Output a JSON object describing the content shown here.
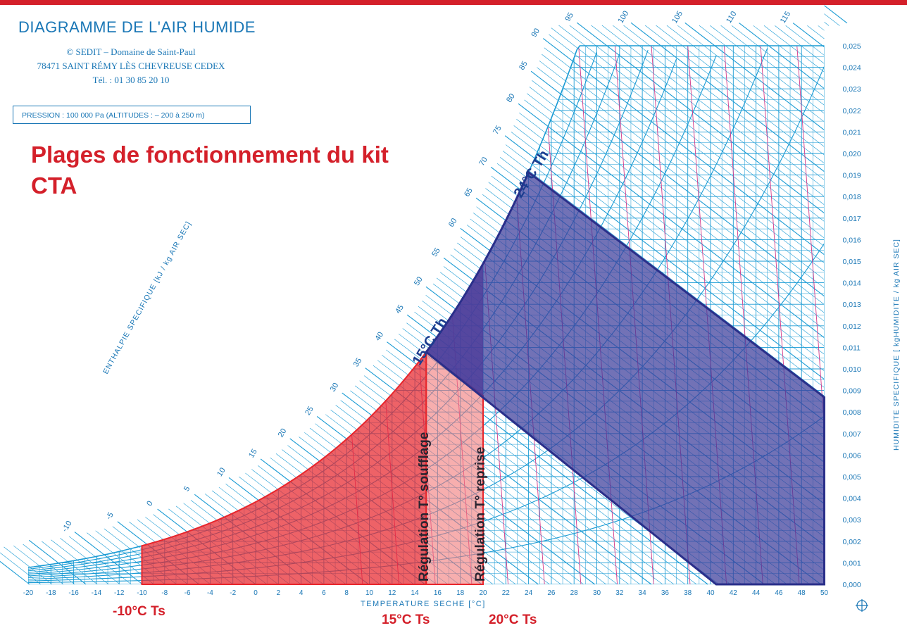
{
  "header": {
    "title": "DIAGRAMME DE L'AIR HUMIDE",
    "publisher_line1": "© SEDIT – Domaine de Saint-Paul",
    "publisher_line2": "78471 SAINT RÉMY LÈS CHEVREUSE CEDEX",
    "publisher_line3": "Tél. : 01 30 85 20 10",
    "pressure": "PRESSION : 100 000 Pa   (ALTITUDES : – 200 à 250 m)"
  },
  "overlay": {
    "title": "Plages de fonctionnement du kit CTA",
    "label_wet_15": "15°C Th",
    "label_wet_24": "24°C Th",
    "label_supply": "Régulation T° soufflage",
    "label_return": "Régulation T° reprise",
    "label_dry_minus10": "-10°C Ts",
    "label_dry_15": "15°C Ts",
    "label_dry_20": "20°C Ts"
  },
  "axes": {
    "x_title": "TEMPERATURE   SECHE  [°C]",
    "x_ticks": [
      "-20",
      "-18",
      "-16",
      "-14",
      "-12",
      "-10",
      "-8",
      "-6",
      "-4",
      "-2",
      "0",
      "2",
      "4",
      "6",
      "8",
      "10",
      "12",
      "14",
      "16",
      "18",
      "20",
      "22",
      "24",
      "26",
      "28",
      "30",
      "32",
      "34",
      "36",
      "38",
      "40",
      "42",
      "44",
      "46",
      "48",
      "50"
    ],
    "y_title": "HUMIDITE  SPECIFIQUE  [ kgHUMIDITE / kg AIR SEC]",
    "y_ticks": [
      "0,000",
      "0,001",
      "0,002",
      "0,003",
      "0,004",
      "0,005",
      "0,006",
      "0,007",
      "0,008",
      "0,009",
      "0,010",
      "0,011",
      "0,012",
      "0,013",
      "0,014",
      "0,015",
      "0,016",
      "0,017",
      "0,018",
      "0,019",
      "0,020",
      "0,021",
      "0,022",
      "0,023",
      "0,024",
      "0,025"
    ],
    "enthalpy_title": "ENTHALPIE  SPECIFIQUE  [kJ / kg AIR SEC]",
    "enthalpy_ticks": [
      "-10",
      "-5",
      "0",
      "5",
      "10",
      "15",
      "20",
      "25",
      "30",
      "35",
      "40",
      "45",
      "50",
      "55",
      "60",
      "65",
      "70",
      "75",
      "80",
      "85",
      "90",
      "95",
      "100",
      "105",
      "110",
      "115"
    ]
  },
  "colors": {
    "chart_blue": "#1a9bd4",
    "chart_magenta": "#d23a8a",
    "red_zone": "#e8262c",
    "pink_zone": "#f29a9a",
    "purple_zone": "#7a4a9e",
    "blue_zone": "#3c3c9a",
    "label_red": "#d4202a",
    "label_blue": "#1c3d8f"
  }
}
